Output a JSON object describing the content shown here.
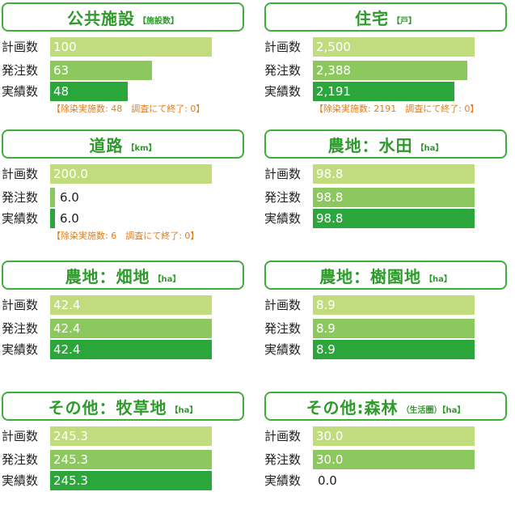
{
  "chart_data": [
    {
      "type": "bar",
      "title": "公共施設",
      "unit": "【施設数】",
      "categories": [
        "計画数",
        "発注数",
        "実績数"
      ],
      "values": [
        100,
        63,
        48
      ],
      "value_labels": [
        "100",
        "63",
        "48"
      ],
      "xlim": [
        0,
        100
      ],
      "note": "【除染実施数: 48　調査にて終了: 0】"
    },
    {
      "type": "bar",
      "title": "住宅",
      "unit": "【戸】",
      "categories": [
        "計画数",
        "発注数",
        "実績数"
      ],
      "values": [
        2500,
        2388,
        2191
      ],
      "value_labels": [
        "2,500",
        "2,388",
        "2,191"
      ],
      "xlim": [
        0,
        2500
      ],
      "note": "【除染実施数: 2191　調査にて終了: 0】"
    },
    {
      "type": "bar",
      "title": "道路",
      "unit": "【km】",
      "categories": [
        "計画数",
        "発注数",
        "実績数"
      ],
      "values": [
        200.0,
        6.0,
        6.0
      ],
      "value_labels": [
        "200.0",
        "6.0",
        "6.0"
      ],
      "xlim": [
        0,
        200
      ],
      "note": "【除染実施数: 6　調査にて終了: 0】"
    },
    {
      "type": "bar",
      "title": "農地：水田",
      "unit": "【ha】",
      "categories": [
        "計画数",
        "発注数",
        "実績数"
      ],
      "values": [
        98.8,
        98.8,
        98.8
      ],
      "value_labels": [
        "98.8",
        "98.8",
        "98.8"
      ],
      "xlim": [
        0,
        98.8
      ],
      "note": ""
    },
    {
      "type": "bar",
      "title": "農地：畑地",
      "unit": "【ha】",
      "categories": [
        "計画数",
        "発注数",
        "実績数"
      ],
      "values": [
        42.4,
        42.4,
        42.4
      ],
      "value_labels": [
        "42.4",
        "42.4",
        "42.4"
      ],
      "xlim": [
        0,
        42.4
      ],
      "note": ""
    },
    {
      "type": "bar",
      "title": "農地：樹園地",
      "unit": "【ha】",
      "categories": [
        "計画数",
        "発注数",
        "実績数"
      ],
      "values": [
        8.9,
        8.9,
        8.9
      ],
      "value_labels": [
        "8.9",
        "8.9",
        "8.9"
      ],
      "xlim": [
        0,
        8.9
      ],
      "note": ""
    },
    {
      "type": "bar",
      "title": "その他：牧草地",
      "unit": "【ha】",
      "categories": [
        "計画数",
        "発注数",
        "実績数"
      ],
      "values": [
        245.3,
        245.3,
        245.3
      ],
      "value_labels": [
        "245.3",
        "245.3",
        "245.3"
      ],
      "xlim": [
        0,
        245.3
      ],
      "note": ""
    },
    {
      "type": "bar",
      "title": "その他:森林",
      "unit": "（生活圏）【ha】",
      "categories": [
        "計画数",
        "発注数",
        "実績数"
      ],
      "values": [
        30.0,
        30.0,
        0.0
      ],
      "value_labels": [
        "30.0",
        "30.0",
        "0.0"
      ],
      "xlim": [
        0,
        30
      ],
      "note": ""
    }
  ],
  "colors": {
    "plan": "#c0dc7c",
    "order": "#8cc85e",
    "actual": "#2aa63a",
    "header_border": "#3fae3a",
    "header_text": "#2e9a2b",
    "note_text": "#e07b1a"
  }
}
